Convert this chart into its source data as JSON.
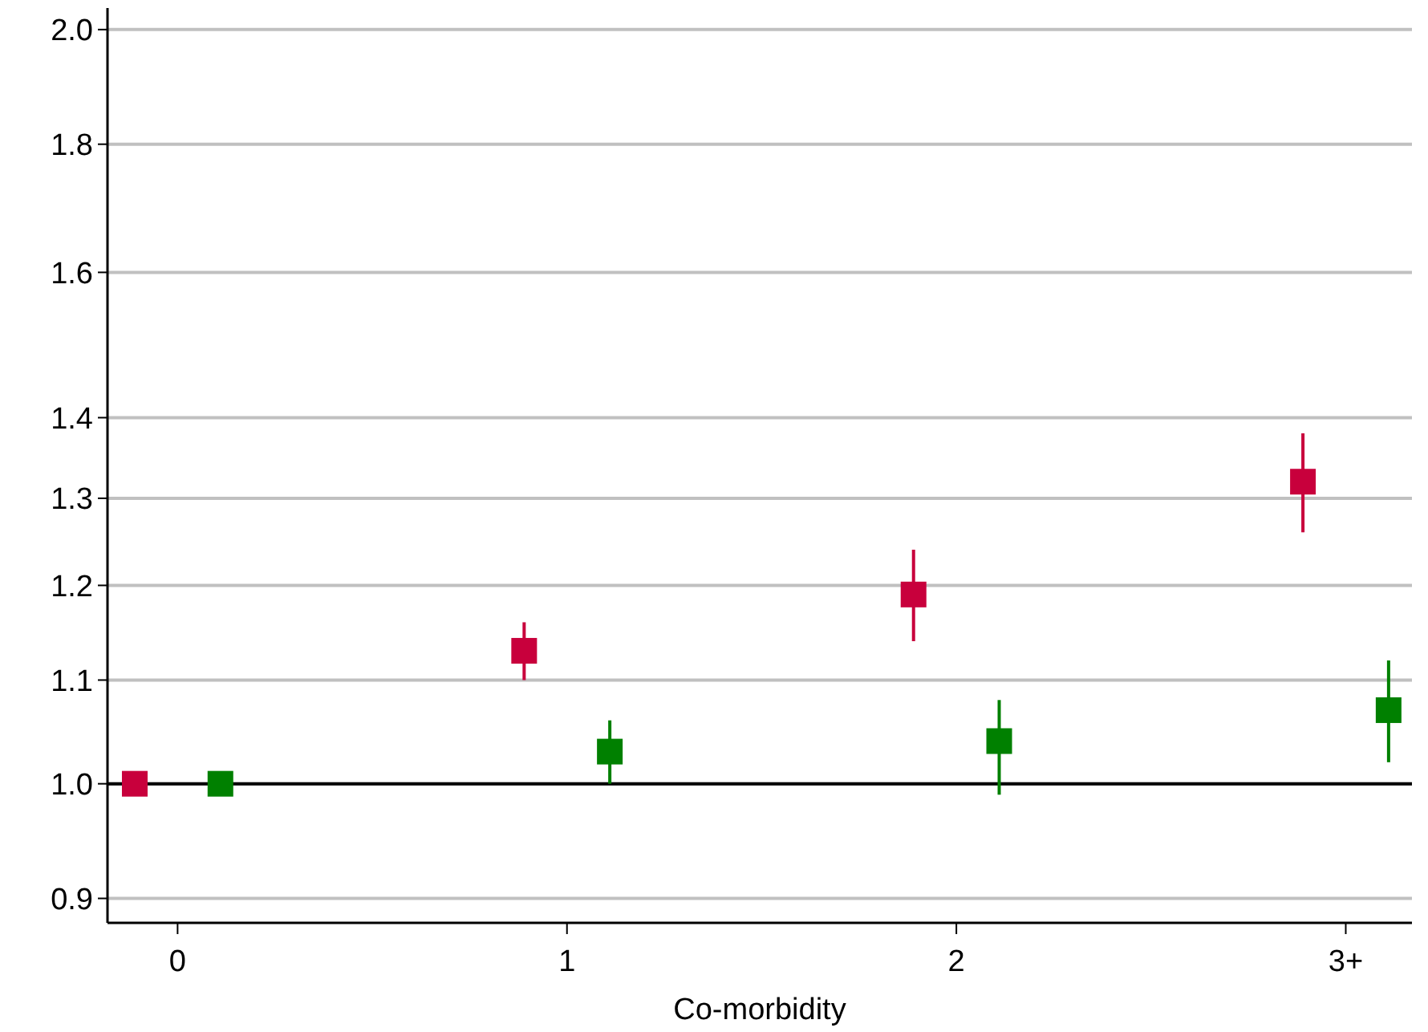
{
  "chart_data": {
    "type": "scatter",
    "xlabel": "Co-morbidity",
    "log": "y",
    "xlim": [
      -0.18,
      3.17
    ],
    "xticks": [
      0,
      1,
      2,
      {
        "value": 3,
        "label": "3+"
      }
    ],
    "ylim": [
      0.88,
      2.04
    ],
    "yticks": [
      0.9,
      {
        "value": 1,
        "label": "1.0"
      },
      1.1,
      1.2,
      1.3,
      1.4,
      1.6,
      1.8,
      {
        "value": 2,
        "label": "2.0"
      }
    ],
    "grid": "y",
    "marker": "square",
    "series": [
      {
        "color": "#c8003c",
        "x": [
          -0.11,
          0.89,
          1.89,
          2.89
        ],
        "values": [
          1.0,
          1.13,
          1.19,
          1.32
        ],
        "errors": [
          null,
          [
            1.1,
            1.16
          ],
          [
            1.14,
            1.24
          ],
          [
            1.26,
            1.38
          ]
        ]
      },
      {
        "color": "#008000",
        "x": [
          0.11,
          1.11,
          2.11,
          3.11
        ],
        "values": [
          1.0,
          1.03,
          1.04,
          1.07
        ],
        "errors": [
          null,
          [
            1.0,
            1.06
          ],
          [
            0.99,
            1.08
          ],
          [
            1.02,
            1.12
          ]
        ]
      }
    ],
    "ref_lines": [
      {
        "axis": "y",
        "value": 1.0,
        "color": "#000000"
      }
    ]
  }
}
